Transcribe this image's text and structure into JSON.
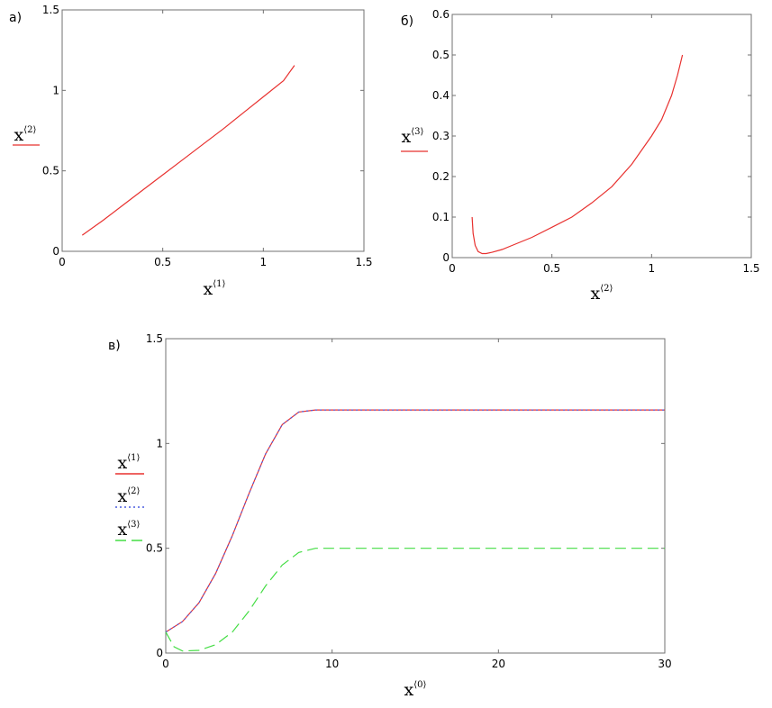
{
  "colors": {
    "red": "#e8312f",
    "blue": "#4a5be0",
    "green": "#44dd44",
    "frame": "#707070"
  },
  "chart_data": [
    {
      "id": "a",
      "panel_label": "а)",
      "type": "line",
      "xlabel": "x",
      "xlabel_sup": "⟨1⟩",
      "ylabel": "x",
      "ylabel_sup": "⟨2⟩",
      "xlim": [
        0,
        1.5
      ],
      "ylim": [
        0,
        1.5
      ],
      "xticks": [
        0,
        0.5,
        1,
        1.5
      ],
      "yticks": [
        0,
        0.5,
        1,
        1.5
      ],
      "xtick_labels": [
        "0",
        "0.5",
        "1",
        "1.5"
      ],
      "ytick_labels": [
        "0",
        "0.5",
        "1",
        "1.5"
      ],
      "series": [
        {
          "color": "#e8312f",
          "dash": "solid",
          "x": [
            0.1,
            0.2,
            0.3,
            0.4,
            0.5,
            0.6,
            0.7,
            0.8,
            0.9,
            1.0,
            1.1,
            1.155
          ],
          "y": [
            0.1,
            0.19,
            0.285,
            0.38,
            0.475,
            0.57,
            0.665,
            0.76,
            0.86,
            0.96,
            1.06,
            1.155
          ]
        }
      ]
    },
    {
      "id": "b",
      "panel_label": "б)",
      "type": "line",
      "xlabel": "x",
      "xlabel_sup": "⟨2⟩",
      "ylabel": "x",
      "ylabel_sup": "⟨3⟩",
      "xlim": [
        0,
        1.5
      ],
      "ylim": [
        0,
        0.6
      ],
      "xticks": [
        0,
        0.5,
        1,
        1.5
      ],
      "yticks": [
        0,
        0.1,
        0.2,
        0.3,
        0.4,
        0.5,
        0.6
      ],
      "xtick_labels": [
        "0",
        "0.5",
        "1",
        "1.5"
      ],
      "ytick_labels": [
        "0",
        "0.1",
        "0.2",
        "0.3",
        "0.4",
        "0.5",
        "0.6"
      ],
      "series": [
        {
          "color": "#e8312f",
          "dash": "solid",
          "x": [
            0.1,
            0.105,
            0.115,
            0.13,
            0.15,
            0.17,
            0.2,
            0.25,
            0.3,
            0.4,
            0.5,
            0.6,
            0.7,
            0.8,
            0.9,
            1.0,
            1.05,
            1.1,
            1.13,
            1.155
          ],
          "y": [
            0.1,
            0.06,
            0.03,
            0.015,
            0.01,
            0.01,
            0.013,
            0.02,
            0.03,
            0.05,
            0.075,
            0.1,
            0.135,
            0.175,
            0.23,
            0.3,
            0.34,
            0.4,
            0.45,
            0.5
          ]
        }
      ]
    },
    {
      "id": "c",
      "panel_label": "в)",
      "type": "line",
      "xlabel": "x",
      "xlabel_sup": "⟨0⟩",
      "xlim": [
        0,
        30
      ],
      "ylim": [
        0,
        1.5
      ],
      "xticks": [
        0,
        10,
        20,
        30
      ],
      "yticks": [
        0,
        0.5,
        1,
        1.5
      ],
      "xtick_labels": [
        "0",
        "10",
        "20",
        "30"
      ],
      "ytick_labels": [
        "0",
        "0.5",
        "1",
        "1.5"
      ],
      "legend": [
        {
          "label": "x",
          "sup": "⟨1⟩",
          "color": "#e8312f",
          "dash": "solid"
        },
        {
          "label": "x",
          "sup": "⟨2⟩",
          "color": "#4a5be0",
          "dash": "dotted"
        },
        {
          "label": "x",
          "sup": "⟨3⟩",
          "color": "#44dd44",
          "dash": "dashed"
        }
      ],
      "series": [
        {
          "color": "#e8312f",
          "dash": "solid",
          "x": [
            0,
            1,
            2,
            3,
            4,
            5,
            6,
            7,
            8,
            9,
            10,
            15,
            20,
            25,
            30
          ],
          "y": [
            0.1,
            0.15,
            0.24,
            0.38,
            0.56,
            0.76,
            0.95,
            1.09,
            1.15,
            1.16,
            1.16,
            1.16,
            1.16,
            1.16,
            1.16
          ]
        },
        {
          "color": "#4a5be0",
          "dash": "dotted",
          "x": [
            0,
            1,
            2,
            3,
            4,
            5,
            6,
            7,
            8,
            9,
            10,
            15,
            20,
            25,
            30
          ],
          "y": [
            0.1,
            0.15,
            0.24,
            0.38,
            0.56,
            0.76,
            0.95,
            1.09,
            1.15,
            1.16,
            1.16,
            1.16,
            1.16,
            1.16,
            1.16
          ]
        },
        {
          "color": "#44dd44",
          "dash": "dashed",
          "x": [
            0,
            0.5,
            1,
            2,
            3,
            4,
            5,
            6,
            7,
            8,
            9,
            10,
            15,
            20,
            25,
            30
          ],
          "y": [
            0.1,
            0.03,
            0.01,
            0.013,
            0.04,
            0.1,
            0.2,
            0.32,
            0.42,
            0.48,
            0.5,
            0.5,
            0.5,
            0.5,
            0.5,
            0.5
          ]
        }
      ]
    }
  ]
}
